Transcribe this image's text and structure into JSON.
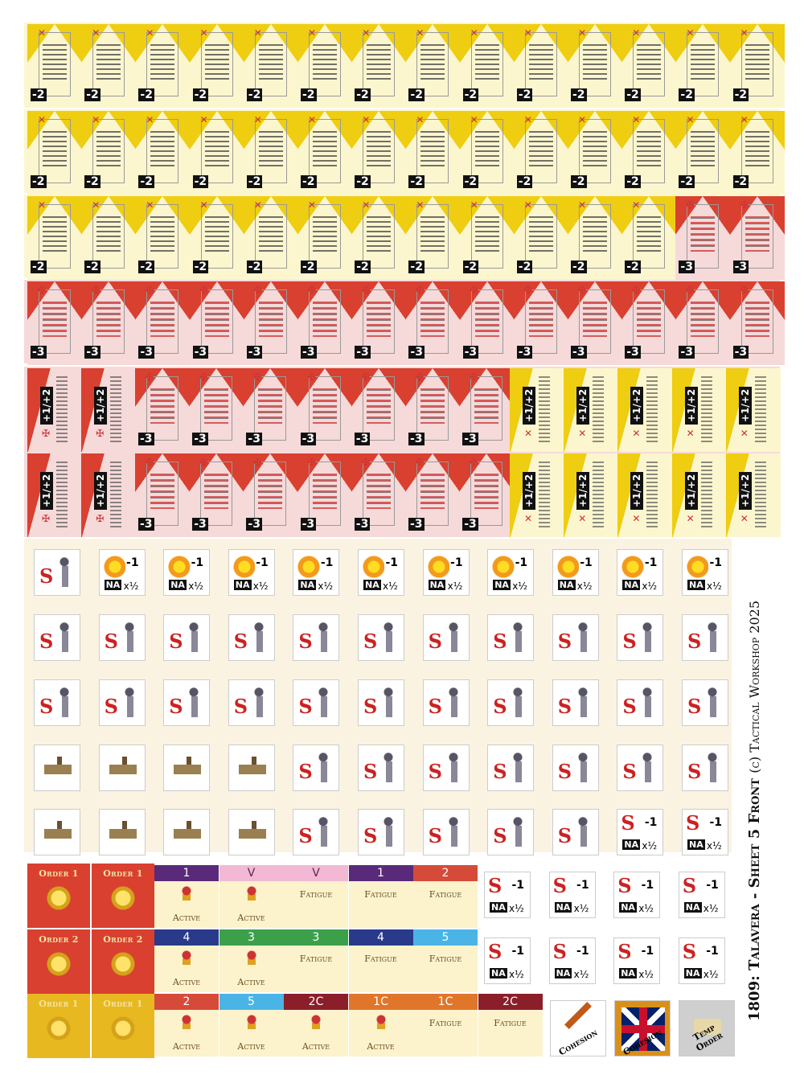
{
  "sheet_title": "1809: Talavera - Sheet 5 Front",
  "copyright": "(c) Tactical Workshop 2025",
  "colors": {
    "yellow": "#efcd10",
    "cream": "#fcf6cf",
    "red": "#d94030",
    "pink": "#f6d9d9",
    "bg": "#fbf3e2"
  },
  "units": {
    "row1": [
      "-2",
      "-2",
      "-2",
      "-2",
      "-2",
      "-2",
      "-2",
      "-2",
      "-2",
      "-2",
      "-2",
      "-2",
      "-2",
      "-2"
    ],
    "row2": [
      "-2",
      "-2",
      "-2",
      "-2",
      "-2",
      "-2",
      "-2",
      "-2",
      "-2",
      "-2",
      "-2",
      "-2",
      "-2",
      "-2"
    ],
    "row3": [
      "-2",
      "-2",
      "-2",
      "-2",
      "-2",
      "-2",
      "-2",
      "-2",
      "-2",
      "-2",
      "-2",
      "-2",
      "-3",
      "-3"
    ],
    "row4": [
      "-3",
      "-3",
      "-3",
      "-3",
      "-3",
      "-3",
      "-3",
      "-3",
      "-3",
      "-3",
      "-3",
      "-3",
      "-3",
      "-3"
    ],
    "row5_left": [
      "+1/+2",
      "+1/+2"
    ],
    "row5_mid": [
      "-3",
      "-3",
      "-3",
      "-3",
      "-3",
      "-3",
      "-3"
    ],
    "row5_right": [
      "+1/+2",
      "+1/+2",
      "+1/+2",
      "+1/+2",
      "+1/+2"
    ],
    "row6_left": [
      "+1/+2",
      "+1/+2"
    ],
    "row6_mid": [
      "-3",
      "-3",
      "-3",
      "-3",
      "-3",
      "-3",
      "-3"
    ],
    "row6_right": [
      "+1/+2",
      "+1/+2",
      "+1/+2",
      "+1/+2",
      "+1/+2"
    ]
  },
  "markers": {
    "na_label": "NA",
    "na_mod": "x½",
    "minus": "-1",
    "s_label": "S"
  },
  "orders": {
    "r1": [
      "Order 1",
      "Order 1"
    ],
    "r2": [
      "Order 2",
      "Order 2"
    ],
    "r3": [
      "Order 1",
      "Order 1"
    ]
  },
  "tracks": {
    "r1": [
      {
        "id": "1",
        "word": "Active",
        "color": "#5a2a7a"
      },
      {
        "id": "V",
        "word": "Active",
        "color": "#f2b8d4"
      },
      {
        "id": "V",
        "word": "Fatigue",
        "color": "#f2b8d4"
      },
      {
        "id": "1",
        "word": "Fatigue",
        "color": "#5a2a7a"
      },
      {
        "id": "2",
        "word": "Fatigue",
        "color": "#d64a3a"
      }
    ],
    "r2": [
      {
        "id": "4",
        "word": "Active",
        "color": "#2a3a8a"
      },
      {
        "id": "3",
        "word": "Active",
        "color": "#3ca04a"
      },
      {
        "id": "3",
        "word": "Fatigue",
        "color": "#3ca04a"
      },
      {
        "id": "4",
        "word": "Fatigue",
        "color": "#2a3a8a"
      },
      {
        "id": "5",
        "word": "Fatigue",
        "color": "#4ab4e6"
      }
    ],
    "r3": [
      {
        "id": "2",
        "word": "Active",
        "color": "#d64a3a"
      },
      {
        "id": "5",
        "word": "Active",
        "color": "#4ab4e6"
      },
      {
        "id": "2C",
        "word": "Active",
        "color": "#8a1f2a"
      },
      {
        "id": "1C",
        "word": "Active",
        "color": "#e0762a"
      },
      {
        "id": "1C",
        "word": "Fatigue",
        "color": "#e0762a"
      },
      {
        "id": "2C",
        "word": "Fatigue",
        "color": "#8a1f2a"
      }
    ]
  },
  "special": {
    "cohesion1": "Cohesion",
    "cohesion2": "Cohesion",
    "temp_order": "Temp Order"
  }
}
